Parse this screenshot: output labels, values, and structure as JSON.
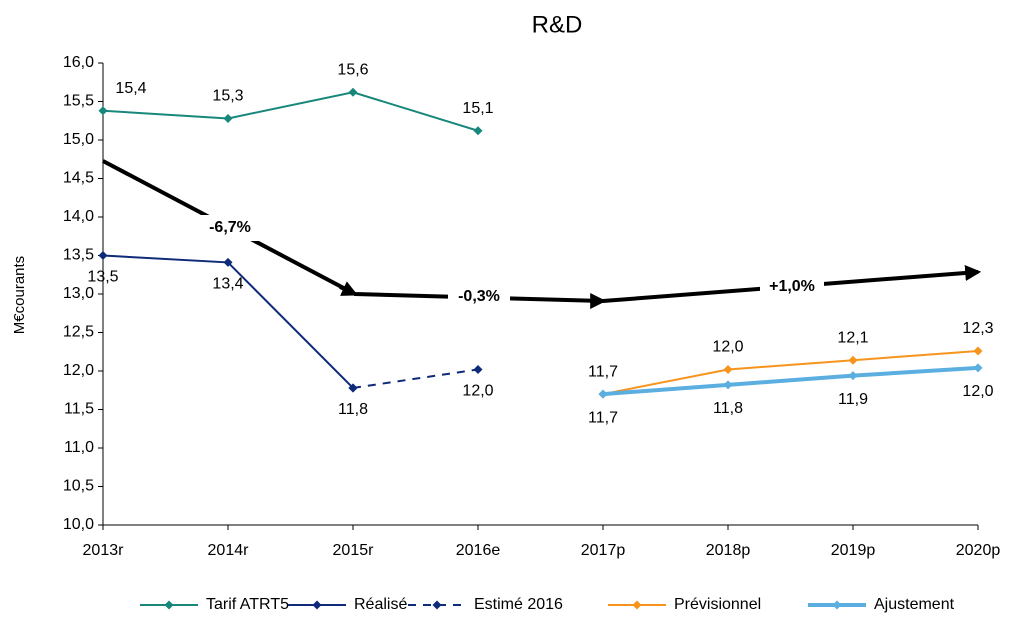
{
  "chart_data": {
    "type": "line",
    "title": "R&D",
    "y_label": "M€courants",
    "categories": [
      "2013r",
      "2014r",
      "2015r",
      "2016e",
      "2017p",
      "2018p",
      "2019p",
      "2020p"
    ],
    "ylim": [
      10,
      16
    ],
    "yticks": [
      {
        "value": 10,
        "label": "10,0"
      },
      {
        "value": 10.5,
        "label": "10,5"
      },
      {
        "value": 11,
        "label": "11,0"
      },
      {
        "value": 11.5,
        "label": "11,5"
      },
      {
        "value": 12,
        "label": "12,0"
      },
      {
        "value": 12.5,
        "label": "12,5"
      },
      {
        "value": 13,
        "label": "13,0"
      },
      {
        "value": 13.5,
        "label": "13,5"
      },
      {
        "value": 14,
        "label": "14,0"
      },
      {
        "value": 14.5,
        "label": "14,5"
      },
      {
        "value": 15,
        "label": "15,0"
      },
      {
        "value": 15.5,
        "label": "15,5"
      },
      {
        "value": 16,
        "label": "16,0"
      }
    ],
    "grid": false,
    "legend": "bottom",
    "series": [
      {
        "name": "Tarif ATRT5",
        "color": "#16877a",
        "values": [
          15.38,
          15.28,
          15.62,
          15.12,
          null,
          null,
          null,
          null
        ],
        "value_labels": [
          "15,4",
          "15,3",
          "15,6",
          "15,1",
          null,
          null,
          null,
          null
        ]
      },
      {
        "name": "Réalisé",
        "color": "#0e2a78",
        "values": [
          13.5,
          13.41,
          11.78,
          null,
          null,
          null,
          null,
          null
        ],
        "value_labels": [
          "13,5",
          "13,4",
          "11,8",
          null,
          null,
          null,
          null,
          null
        ]
      },
      {
        "name": "Estimé 2016",
        "color": "#0e2a78",
        "dashed": true,
        "values": [
          null,
          null,
          11.78,
          12.02,
          null,
          null,
          null,
          null
        ],
        "value_labels": [
          null,
          null,
          null,
          "12,0",
          null,
          null,
          null,
          null
        ]
      },
      {
        "name": "Prévisionnel",
        "color": "#f7941d",
        "values": [
          null,
          null,
          null,
          null,
          11.7,
          12.02,
          12.14,
          12.26
        ],
        "value_labels": [
          null,
          null,
          null,
          null,
          "11,7",
          "12,0",
          "12,1",
          "12,3"
        ]
      },
      {
        "name": "Ajustement",
        "color": "#5aaee0",
        "thick": true,
        "values": [
          null,
          null,
          null,
          null,
          11.7,
          11.82,
          11.94,
          12.04
        ],
        "value_labels": [
          null,
          null,
          null,
          null,
          "11,7",
          "11,8",
          "11,9",
          "12,0"
        ]
      }
    ],
    "annotations": [
      "-6,7%",
      "-0,3%",
      "+1,0%"
    ]
  }
}
